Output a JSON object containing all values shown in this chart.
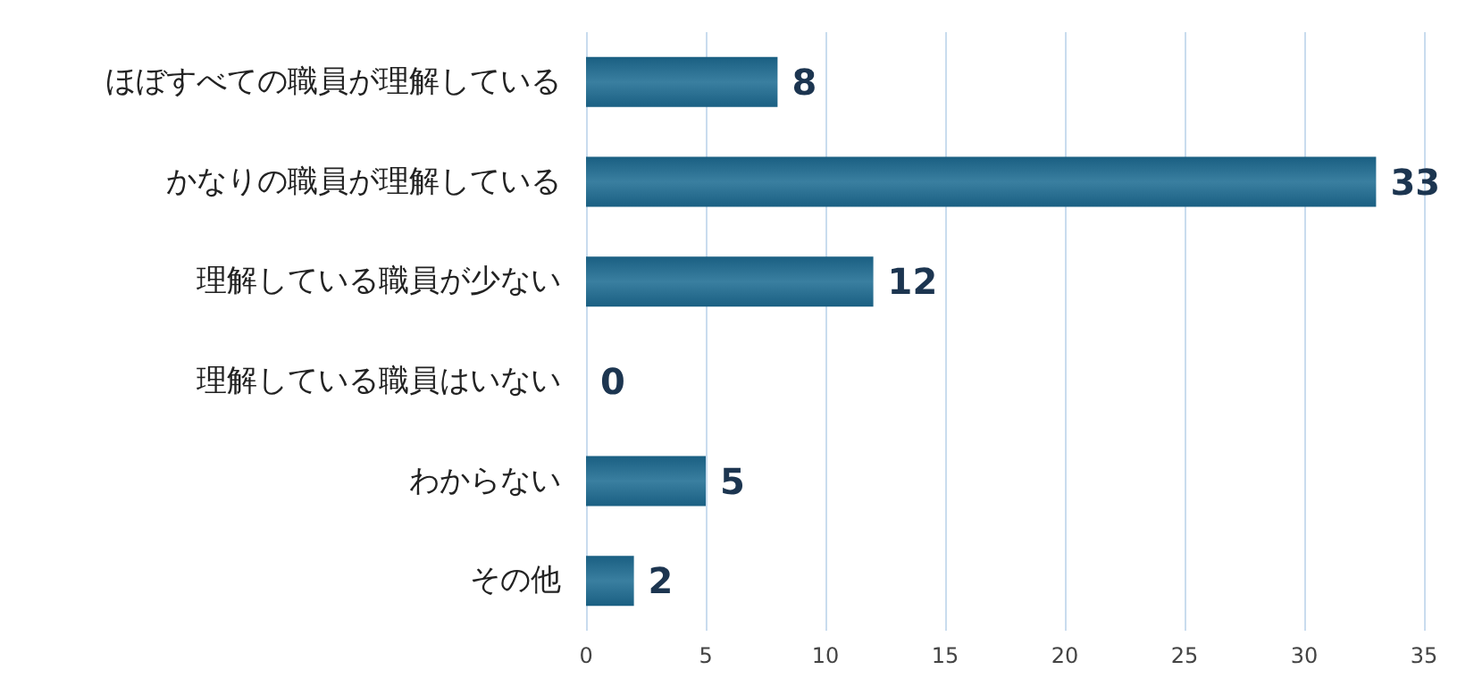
{
  "chart_data": {
    "type": "bar",
    "orientation": "horizontal",
    "categories": [
      "ほぼすべての職員が理解している",
      "かなりの職員が理解している",
      "理解している職員が少ない",
      "理解している職員はいない",
      "わからない",
      "その他"
    ],
    "values": [
      8,
      33,
      12,
      0,
      5,
      2
    ],
    "color": "#1a5f82",
    "xlim": [
      0,
      35
    ],
    "xticks": [
      0,
      5,
      10,
      15,
      20,
      25,
      30,
      35
    ],
    "grid": "x",
    "data_labels": true
  }
}
